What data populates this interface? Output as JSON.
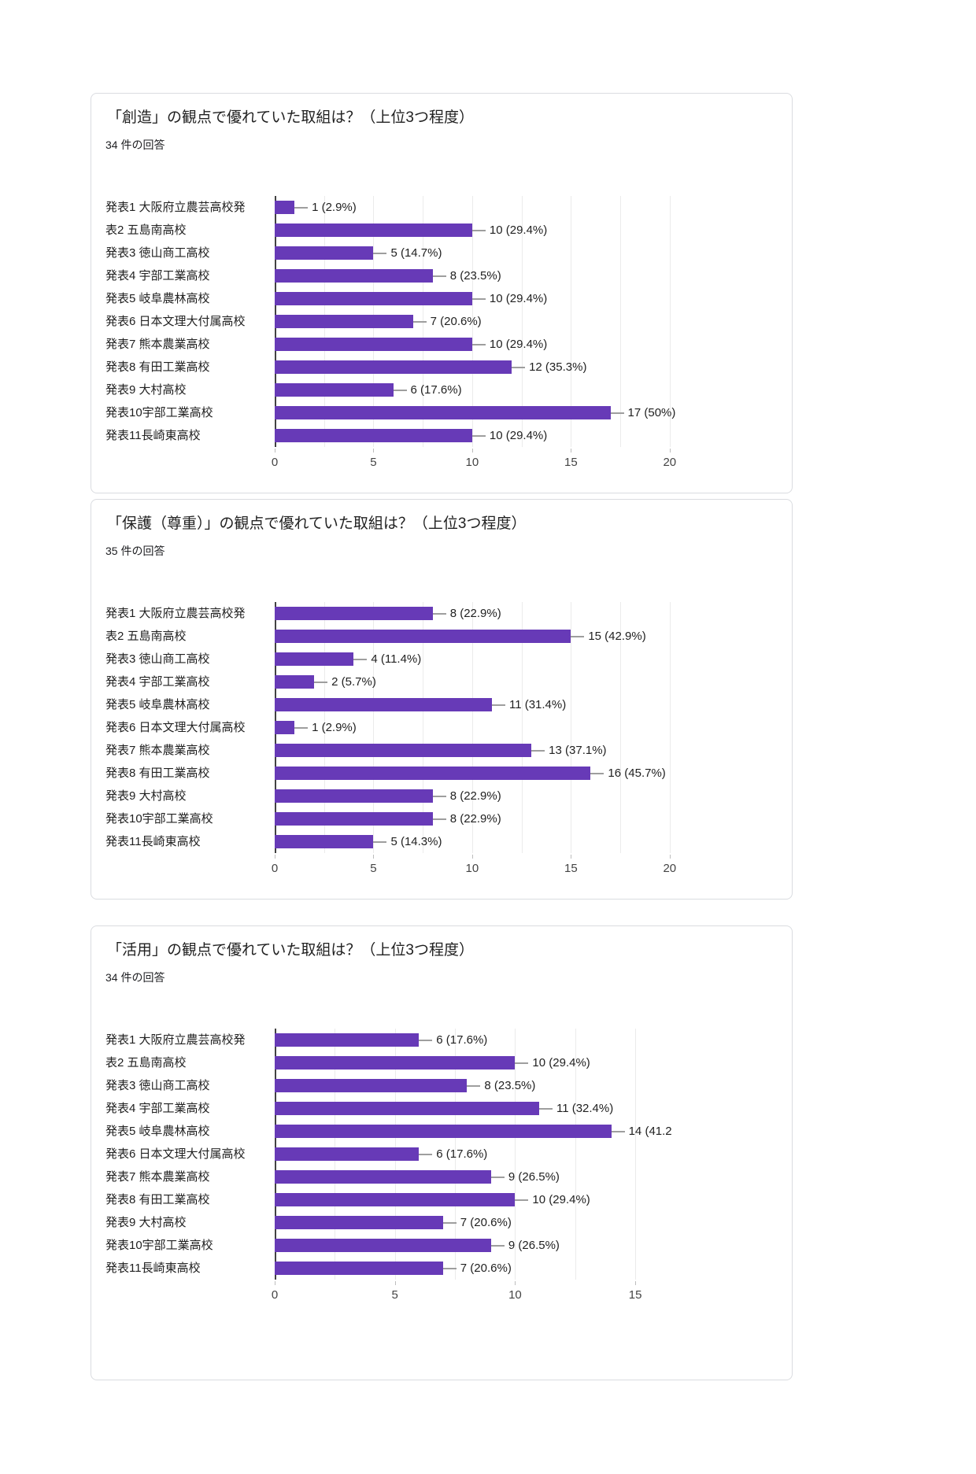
{
  "colors": {
    "bar": "#673ab7",
    "axis_line": "#424242",
    "gridline": "#ebebeb",
    "leader_line": "#9e9e9e",
    "tick_text": "#444444",
    "text": "#212121"
  },
  "chart_data": [
    {
      "type": "bar",
      "orientation": "horizontal",
      "title": "「創造」の観点で優れていた取組は？（上位3つ程度）",
      "responses_label": "34 件の回答",
      "xlabel": "",
      "ylabel": "",
      "categories": [
        "発表1 大阪府立農芸高校発",
        "表2 五島南高校",
        "発表3 徳山商工高校",
        "発表4 宇部工業高校",
        "発表5 岐阜農林高校",
        "発表6 日本文理大付属高校",
        "発表7 熊本農業高校",
        "発表8 有田工業高校",
        "発表9 大村高校",
        "発表10宇部工業高校",
        "発表11長崎東高校"
      ],
      "values": [
        1,
        10,
        5,
        8,
        10,
        7,
        10,
        12,
        6,
        17,
        10
      ],
      "value_labels": [
        "1 (2.9%)",
        "10 (29.4%)",
        "5 (14.7%)",
        "8 (23.5%)",
        "10 (29.4%)",
        "7 (20.6%)",
        "10 (29.4%)",
        "12 (35.3%)",
        "6 (17.6%)",
        "17 (50%)",
        "10 (29.4%)"
      ],
      "axis_ticks": [
        0,
        5,
        10,
        15,
        20
      ],
      "xlim": [
        0,
        22.4
      ],
      "grid_step": 2.5,
      "grid": true,
      "legend": "none"
    },
    {
      "type": "bar",
      "orientation": "horizontal",
      "title": "「保護（尊重）」の観点で優れていた取組は？（上位3つ程度）",
      "responses_label": "35 件の回答",
      "xlabel": "",
      "ylabel": "",
      "categories": [
        "発表1 大阪府立農芸高校発",
        "表2 五島南高校",
        "発表3 徳山商工高校",
        "発表4 宇部工業高校",
        "発表5 岐阜農林高校",
        "発表6 日本文理大付属高校",
        "発表7 熊本農業高校",
        "発表8 有田工業高校",
        "発表9 大村高校",
        "発表10宇部工業高校",
        "発表11長崎東高校"
      ],
      "values": [
        8,
        15,
        4,
        2,
        11,
        1,
        13,
        16,
        8,
        8,
        5
      ],
      "value_labels": [
        "8 (22.9%)",
        "15 (42.9%)",
        "4 (11.4%)",
        "2 (5.7%)",
        "11 (31.4%)",
        "1 (2.9%)",
        "13 (37.1%)",
        "16 (45.7%)",
        "8 (22.9%)",
        "8 (22.9%)",
        "5 (14.3%)"
      ],
      "axis_ticks": [
        0,
        5,
        10,
        15,
        20
      ],
      "xlim": [
        0,
        22.4
      ],
      "grid_step": 2.5,
      "grid": true,
      "legend": "none"
    },
    {
      "type": "bar",
      "orientation": "horizontal",
      "title": "「活用」の観点で優れていた取組は？（上位3つ程度）",
      "responses_label": "34 件の回答",
      "xlabel": "",
      "ylabel": "",
      "categories": [
        "発表1 大阪府立農芸高校発",
        "表2 五島南高校",
        "発表3 徳山商工高校",
        "発表4 宇部工業高校",
        "発表5 岐阜農林高校",
        "発表6 日本文理大付属高校",
        "発表7 熊本農業高校",
        "発表8 有田工業高校",
        "発表9 大村高校",
        "発表10宇部工業高校",
        "発表11長崎東高校"
      ],
      "values": [
        6,
        10,
        8,
        11,
        14,
        6,
        9,
        10,
        7,
        9,
        7
      ],
      "value_labels": [
        "6 (17.6%)",
        "10 (29.4%)",
        "8 (23.5%)",
        "11 (32.4%)",
        "14 (41.2",
        "6 (17.6%)",
        "9 (26.5%)",
        "10 (29.4%)",
        "7 (20.6%)",
        "9 (26.5%)",
        "7 (20.6%)"
      ],
      "axis_ticks": [
        0,
        5,
        10,
        15
      ],
      "xlim": [
        0,
        18.4
      ],
      "grid_step": 2.5,
      "grid": true,
      "legend": "none"
    }
  ]
}
